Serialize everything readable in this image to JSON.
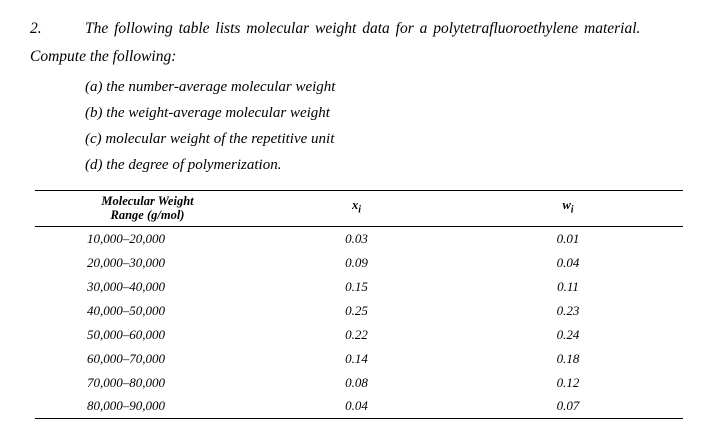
{
  "problem": {
    "number": "2.",
    "intro": "The following table lists molecular weight data for a polytetrafluoroethylene material.",
    "intro_cont": "Compute the following:",
    "items": [
      "(a) the number-average molecular weight",
      "(b) the weight-average molecular weight",
      "(c) molecular weight of the repetitive unit",
      "(d) the degree of polymerization."
    ]
  },
  "table": {
    "headers": {
      "col1_line1": "Molecular Weight",
      "col1_line2": "Range (g/mol)",
      "col2_base": "x",
      "col2_sub": "i",
      "col3_base": "w",
      "col3_sub": "i"
    },
    "rows": [
      {
        "range": "10,000–20,000",
        "xi": "0.03",
        "wi": "0.01"
      },
      {
        "range": "20,000–30,000",
        "xi": "0.09",
        "wi": "0.04"
      },
      {
        "range": "30,000–40,000",
        "xi": "0.15",
        "wi": "0.11"
      },
      {
        "range": "40,000–50,000",
        "xi": "0.25",
        "wi": "0.23"
      },
      {
        "range": "50,000–60,000",
        "xi": "0.22",
        "wi": "0.24"
      },
      {
        "range": "60,000–70,000",
        "xi": "0.14",
        "wi": "0.18"
      },
      {
        "range": "70,000–80,000",
        "xi": "0.08",
        "wi": "0.12"
      },
      {
        "range": "80,000–90,000",
        "xi": "0.04",
        "wi": "0.07"
      }
    ]
  }
}
